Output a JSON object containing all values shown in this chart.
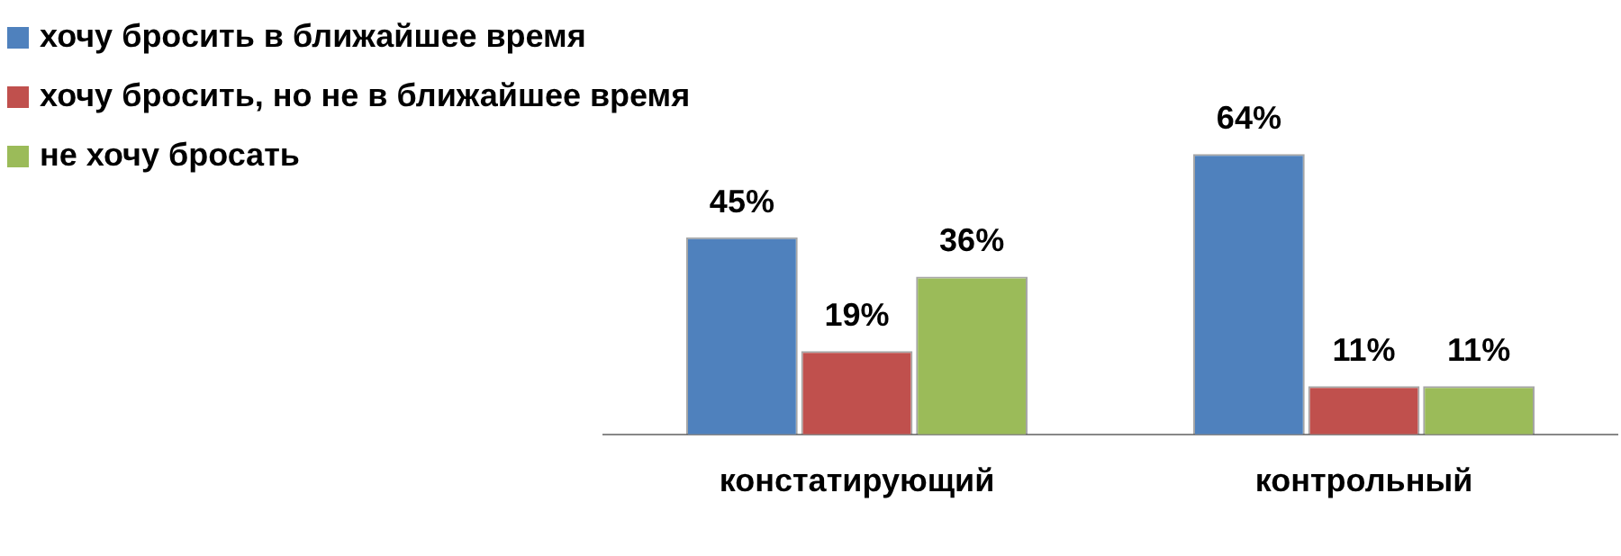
{
  "chart_data": {
    "type": "bar",
    "categories": [
      "констатирующий",
      "контрольный"
    ],
    "series": [
      {
        "name": "хочу бросить в ближайшее время",
        "color": "#4f81bd",
        "values": [
          45,
          64
        ],
        "value_labels": [
          "45%",
          "64%"
        ]
      },
      {
        "name": "хочу бросить, но не в ближайшее время",
        "color": "#c0504d",
        "values": [
          19,
          11
        ],
        "value_labels": [
          "19%",
          "11%"
        ]
      },
      {
        "name": "не хочу бросать",
        "color": "#9bbb59",
        "values": [
          36,
          11
        ],
        "value_labels": [
          "36%",
          "11%"
        ]
      }
    ],
    "legend": "top left",
    "grid": false
  }
}
